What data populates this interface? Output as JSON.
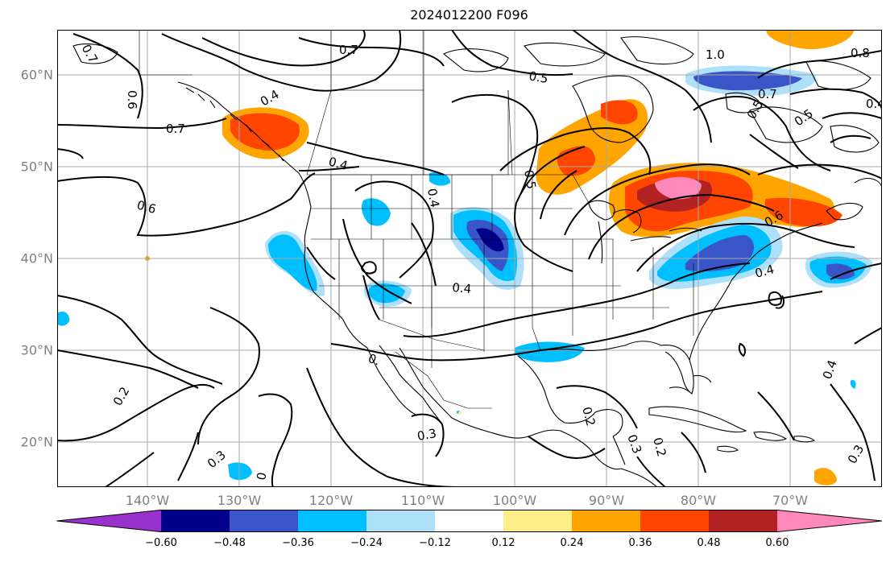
{
  "title": "2024012200 F096",
  "lat_labels": [
    "60°N",
    "50°N",
    "40°N",
    "30°N",
    "20°N"
  ],
  "lon_labels": [
    "140°W",
    "130°W",
    "120°W",
    "110°W",
    "100°W",
    "90°W",
    "80°W",
    "70°W"
  ],
  "colorbar": {
    "ticks": [
      "−0.60",
      "−0.48",
      "−0.36",
      "−0.24",
      "−0.12",
      "0.12",
      "0.24",
      "0.36",
      "0.48",
      "0.60"
    ],
    "colors": [
      "#9932cc",
      "#00008b",
      "#3a55c8",
      "#00bfff",
      "#aee0fa",
      "#ffffff",
      "#ffee88",
      "#ffa500",
      "#ff4500",
      "#b22222",
      "#ff88bb"
    ]
  },
  "contour_labels": [
    "0.7",
    "0.6",
    "0.4",
    "0.7",
    "0.5",
    "0.7",
    "0.4",
    "0.6",
    "0.5",
    "0.4",
    "0.4",
    "0.5",
    "1.0",
    "0.8",
    "0.7",
    "0.5",
    "0.4",
    "0.6",
    "0.4",
    "0.4",
    "0.2",
    "0.3",
    "0",
    "0.3",
    "0.2",
    "0.2",
    "0.3",
    "0.3"
  ]
}
